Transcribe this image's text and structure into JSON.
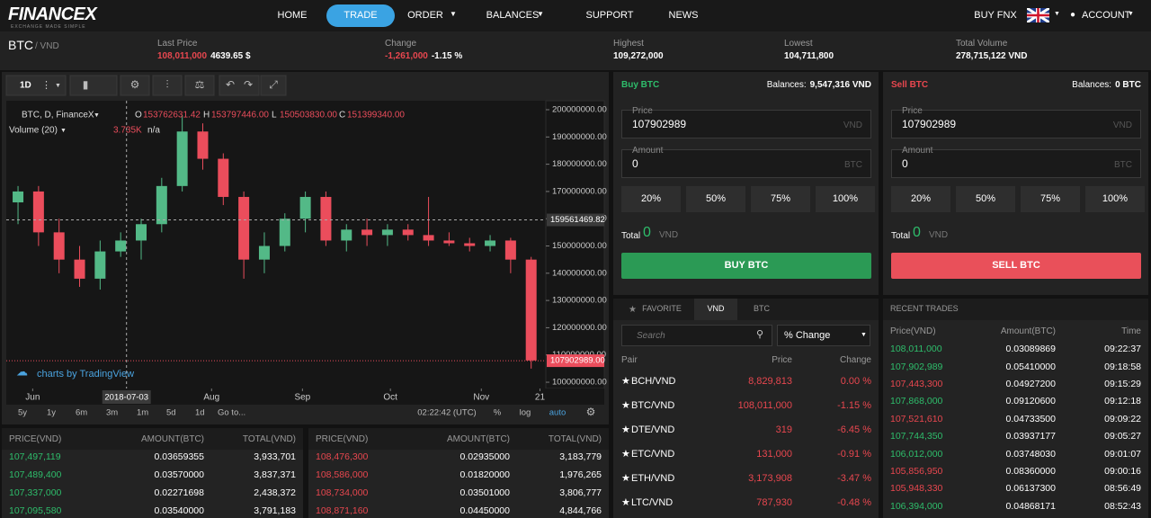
{
  "nav": {
    "logo": "FINANCEX",
    "tagline": "EXCHANGE MADE SIMPLE",
    "items": [
      {
        "label": "HOME"
      },
      {
        "label": "TRADE",
        "active": true
      },
      {
        "label": "ORDER",
        "menu": true
      },
      {
        "label": "BALANCES",
        "menu": true
      },
      {
        "label": "SUPPORT"
      },
      {
        "label": "NEWS"
      }
    ],
    "buy": "BUY FNX",
    "account": "ACCOUNT"
  },
  "ticker": {
    "pair": "BTC",
    "quote": "/ VND",
    "stats": [
      {
        "label": "Last Price",
        "value": "108,011,000",
        "extra": "4639.65 $",
        "color": "#e8474f"
      },
      {
        "label": "Change",
        "value": "-1,261,000",
        "extra": "-1.15 %",
        "color": "#e8474f"
      },
      {
        "label": "Highest",
        "value": "109,272,000",
        "color": "#ffffff"
      },
      {
        "label": "Lowest",
        "value": "104,711,800",
        "color": "#ffffff"
      },
      {
        "label": "Total Volume",
        "value": "278,715,122 VND",
        "color": "#ffffff"
      }
    ]
  },
  "chart_data": {
    "type": "candlestick",
    "symbol": "BTC, D, FinanceX",
    "ohlc": [
      {
        "key": "O",
        "value": "153762631.42"
      },
      {
        "key": "H",
        "value": "153797446.00"
      },
      {
        "key": "L",
        "value": "150503830.00"
      },
      {
        "key": "C",
        "value": "151399340.00"
      }
    ],
    "volume_label": "Volume (20)",
    "volume_value": "3.735K",
    "volume_extra": "n/a",
    "watermark": "charts by TradingView",
    "x": [
      "2018-05-27",
      "2018-06-03",
      "2018-06-10",
      "2018-06-17",
      "2018-06-24",
      "2018-07-01",
      "2018-07-08",
      "2018-07-15",
      "2018-07-22",
      "2018-07-29",
      "2018-08-05",
      "2018-08-12",
      "2018-08-19",
      "2018-08-26",
      "2018-09-02",
      "2018-09-09",
      "2018-09-16",
      "2018-09-23",
      "2018-09-30",
      "2018-10-07",
      "2018-10-14",
      "2018-10-21",
      "2018-10-28",
      "2018-11-04",
      "2018-11-11",
      "2018-11-18"
    ],
    "open": [
      166000000,
      170000000,
      155000000,
      145000000,
      138000000,
      148000000,
      152000000,
      158000000,
      172000000,
      192000000,
      182000000,
      168000000,
      145000000,
      150000000,
      160000000,
      168000000,
      152000000,
      156000000,
      154000000,
      156000000,
      154000000,
      152000000,
      151000000,
      150000000,
      152000000,
      145000000
    ],
    "high": [
      172000000,
      172000000,
      160000000,
      150000000,
      152000000,
      155000000,
      160000000,
      175000000,
      198000000,
      195000000,
      184000000,
      170000000,
      155000000,
      162000000,
      170000000,
      170000000,
      158000000,
      160000000,
      158000000,
      158000000,
      168000000,
      155000000,
      153000000,
      154000000,
      153000000,
      146000000
    ],
    "low": [
      158000000,
      150000000,
      140000000,
      135000000,
      134000000,
      146000000,
      145000000,
      155000000,
      170000000,
      178000000,
      165000000,
      138000000,
      140000000,
      148000000,
      155000000,
      150000000,
      148000000,
      150000000,
      150000000,
      152000000,
      150000000,
      150000000,
      148000000,
      148000000,
      140000000,
      105000000
    ],
    "close": [
      170000000,
      155000000,
      145000000,
      138000000,
      148000000,
      152000000,
      158000000,
      172000000,
      192000000,
      182000000,
      168000000,
      145000000,
      150000000,
      160000000,
      168000000,
      152000000,
      156000000,
      154000000,
      156000000,
      154000000,
      152000000,
      151000000,
      150000000,
      152000000,
      145000000,
      108000000
    ],
    "up_color": "#53b987",
    "down_color": "#eb4d5c",
    "xlim": [
      "2018-05-23",
      "2018-11-23"
    ],
    "xticks": [
      {
        "value": "2018-06-01",
        "label": "Jun"
      },
      {
        "value": "2018-08-01",
        "label": "Aug"
      },
      {
        "value": "2018-09-01",
        "label": "Sep"
      },
      {
        "value": "2018-10-01",
        "label": "Oct"
      },
      {
        "value": "2018-11-01",
        "label": "Nov"
      },
      {
        "value": "2018-11-21",
        "label": "21"
      }
    ],
    "ylim": [
      97700000,
      203300000
    ],
    "yticks": [
      {
        "value": 100000000,
        "label": "100000000.00"
      },
      {
        "value": 110000000,
        "label": "110000000.00"
      },
      {
        "value": 120000000,
        "label": "120000000.00"
      },
      {
        "value": 130000000,
        "label": "130000000.00"
      },
      {
        "value": 140000000,
        "label": "140000000.00"
      },
      {
        "value": 150000000,
        "label": "150000000.00"
      },
      {
        "value": 160000000,
        "label": "160000000.00"
      },
      {
        "value": 170000000,
        "label": "170000000.00"
      },
      {
        "value": 180000000,
        "label": "180000000.00"
      },
      {
        "value": 190000000,
        "label": "190000000.00"
      },
      {
        "value": 200000000,
        "label": "200000000.00"
      }
    ],
    "crosshair": {
      "x": "2018-07-03",
      "y": 159561469.82
    },
    "last_price": {
      "value": 107902989,
      "label": "107902989.00"
    }
  },
  "chart_toolbar": {
    "interval": "1D",
    "ranges": [
      "5y",
      "1y",
      "6m",
      "3m",
      "1m",
      "5d",
      "1d",
      "Go to..."
    ],
    "clock": "02:22:42 (UTC)",
    "options": [
      "%",
      "log",
      "auto"
    ]
  },
  "buy": {
    "title": "Buy BTC",
    "balance_label": "Balances:",
    "balance": "9,547,316 VND",
    "price_label": "Price",
    "price": "107902989",
    "price_unit": "VND",
    "amount_label": "Amount",
    "amount": "0",
    "amount_unit": "BTC",
    "percents": [
      "20%",
      "50%",
      "75%",
      "100%"
    ],
    "total_label": "Total",
    "total": "0",
    "total_unit": "VND",
    "button": "BUY BTC",
    "color": "#2b9a55"
  },
  "sell": {
    "title": "Sell BTC",
    "balance_label": "Balances:",
    "balance": "0 BTC",
    "price_label": "Price",
    "price": "107902989",
    "price_unit": "VND",
    "amount_label": "Amount",
    "amount": "0",
    "amount_unit": "BTC",
    "percents": [
      "20%",
      "50%",
      "75%",
      "100%"
    ],
    "total_label": "Total",
    "total": "0",
    "total_unit": "VND",
    "button": "SELL BTC",
    "color": "#e9505a"
  },
  "market": {
    "tabs": [
      "FAVORITE",
      "VND",
      "BTC"
    ],
    "active_tab": 1,
    "search": "Search",
    "sort": "% Change",
    "columns": [
      "Pair",
      "Price",
      "Change"
    ],
    "color": "#e8474f",
    "rows": [
      [
        "BCH/VND",
        "8,829,813",
        "0.00 %"
      ],
      [
        "BTC/VND",
        "108,011,000",
        "-1.15 %"
      ],
      [
        "DTE/VND",
        "319",
        "-6.45 %"
      ],
      [
        "ETC/VND",
        "131,000",
        "-0.91 %"
      ],
      [
        "ETH/VND",
        "3,173,908",
        "-3.47 %"
      ],
      [
        "LTC/VND",
        "787,930",
        "-0.48 %"
      ]
    ]
  },
  "trades": {
    "title": "RECENT TRADES",
    "columns": [
      "Price(VND)",
      "Amount(BTC)",
      "Time"
    ],
    "rows": [
      {
        "price": "108,011,000",
        "amount": "0.03089869",
        "time": "09:22:37",
        "color": "#2ebd6b"
      },
      {
        "price": "107,902,989",
        "amount": "0.05410000",
        "time": "09:18:58",
        "color": "#2ebd6b"
      },
      {
        "price": "107,443,300",
        "amount": "0.04927200",
        "time": "09:15:29",
        "color": "#e8474f"
      },
      {
        "price": "107,868,000",
        "amount": "0.09120600",
        "time": "09:12:18",
        "color": "#2ebd6b"
      },
      {
        "price": "107,521,610",
        "amount": "0.04733500",
        "time": "09:09:22",
        "color": "#e8474f"
      },
      {
        "price": "107,744,350",
        "amount": "0.03937177",
        "time": "09:05:27",
        "color": "#2ebd6b"
      },
      {
        "price": "106,012,000",
        "amount": "0.03748030",
        "time": "09:01:07",
        "color": "#2ebd6b"
      },
      {
        "price": "105,856,950",
        "amount": "0.08360000",
        "time": "09:00:16",
        "color": "#e8474f"
      },
      {
        "price": "105,948,330",
        "amount": "0.06137300",
        "time": "08:56:49",
        "color": "#e8474f"
      },
      {
        "price": "106,394,000",
        "amount": "0.04868171",
        "time": "08:52:43",
        "color": "#2ebd6b"
      }
    ]
  },
  "orderbook": {
    "bids": {
      "columns": [
        "PRICE(VND)",
        "AMOUNT(BTC)",
        "TOTAL(VND)"
      ],
      "color": "#2ebd6b",
      "rows": [
        [
          "107,497,119",
          "0.03659355",
          "3,933,701"
        ],
        [
          "107,489,400",
          "0.03570000",
          "3,837,371"
        ],
        [
          "107,337,000",
          "0.02271698",
          "2,438,372"
        ],
        [
          "107,095,580",
          "0.03540000",
          "3,791,183"
        ]
      ]
    },
    "asks": {
      "columns": [
        "PRICE(VND)",
        "AMOUNT(BTC)",
        "TOTAL(VND)"
      ],
      "color": "#e8474f",
      "rows": [
        [
          "108,476,300",
          "0.02935000",
          "3,183,779"
        ],
        [
          "108,586,000",
          "0.01820000",
          "1,976,265"
        ],
        [
          "108,734,000",
          "0.03501000",
          "3,806,777"
        ],
        [
          "108,871,160",
          "0.04450000",
          "4,844,766"
        ]
      ]
    }
  }
}
